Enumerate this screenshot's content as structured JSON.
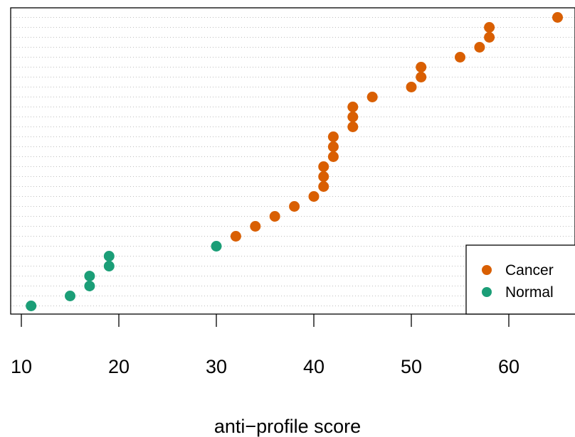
{
  "chart_data": {
    "type": "scatter",
    "subtype": "dotchart",
    "title": "",
    "xlabel": "anti−profile score",
    "ylabel": "",
    "xlim": [
      10,
      66
    ],
    "x_ticks": [
      "10",
      "20",
      "30",
      "40",
      "50",
      "60"
    ],
    "grid": "horizontal dotted lines, one per row",
    "legend_position": "bottom-right",
    "colors": {
      "Cancer": "#D95F02",
      "Normal": "#1B9E77"
    },
    "rows": 30,
    "series": [
      {
        "name": "Normal",
        "color": "#1B9E77",
        "points": [
          {
            "x": 11,
            "row": 1
          },
          {
            "x": 15,
            "row": 2
          },
          {
            "x": 17,
            "row": 3
          },
          {
            "x": 17,
            "row": 4
          },
          {
            "x": 19,
            "row": 5
          },
          {
            "x": 19,
            "row": 6
          },
          {
            "x": 30,
            "row": 7
          }
        ]
      },
      {
        "name": "Cancer",
        "color": "#D95F02",
        "points": [
          {
            "x": 32,
            "row": 8
          },
          {
            "x": 34,
            "row": 9
          },
          {
            "x": 36,
            "row": 10
          },
          {
            "x": 38,
            "row": 11
          },
          {
            "x": 40,
            "row": 12
          },
          {
            "x": 41,
            "row": 13
          },
          {
            "x": 41,
            "row": 14
          },
          {
            "x": 41,
            "row": 15
          },
          {
            "x": 42,
            "row": 16
          },
          {
            "x": 42,
            "row": 17
          },
          {
            "x": 42,
            "row": 18
          },
          {
            "x": 44,
            "row": 19
          },
          {
            "x": 44,
            "row": 20
          },
          {
            "x": 44,
            "row": 21
          },
          {
            "x": 46,
            "row": 22
          },
          {
            "x": 50,
            "row": 23
          },
          {
            "x": 51,
            "row": 24
          },
          {
            "x": 51,
            "row": 25
          },
          {
            "x": 55,
            "row": 26
          },
          {
            "x": 57,
            "row": 27
          },
          {
            "x": 58,
            "row": 28
          },
          {
            "x": 58,
            "row": 29
          },
          {
            "x": 65,
            "row": 30
          }
        ]
      }
    ],
    "legend": [
      {
        "label": "Cancer",
        "color": "#D95F02"
      },
      {
        "label": "Normal",
        "color": "#1B9E77"
      }
    ]
  }
}
